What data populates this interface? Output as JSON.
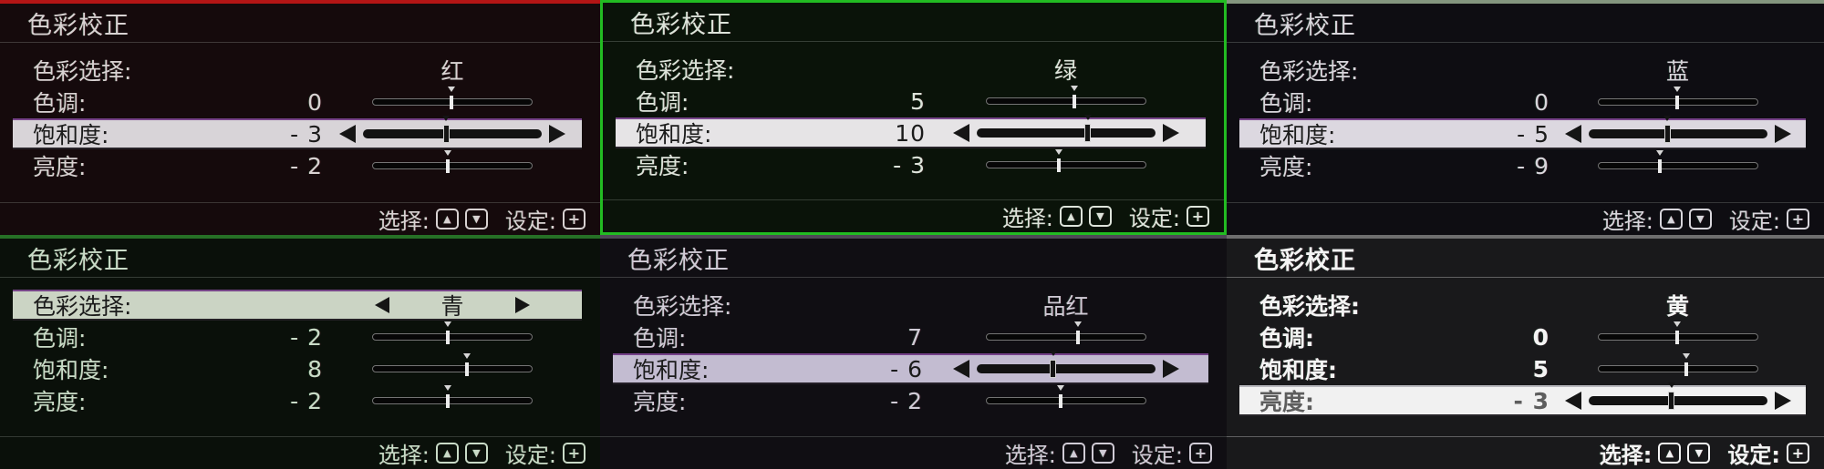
{
  "labels": {
    "title": "色彩校正",
    "color_select": "色彩选择:",
    "hue": "色调:",
    "saturation": "饱和度:",
    "brightness": "亮度:",
    "hint_select": "选择:",
    "hint_set": "设定:",
    "key_up": "▲",
    "key_down": "▼",
    "key_set": "+"
  },
  "panels": [
    {
      "color_name": "红",
      "hue": {
        "text": "0",
        "num": 0
      },
      "saturation": {
        "text": "- 3",
        "num": -3
      },
      "brightness": {
        "text": "- 2",
        "num": -2
      },
      "highlighted_row": "saturation",
      "style": {
        "bg": "#150a0c",
        "border": "#b31515",
        "text": "#d8d2d2",
        "highlight": "#d8d4d8"
      }
    },
    {
      "color_name": "绿",
      "hue": {
        "text": "5",
        "num": 5
      },
      "saturation": {
        "text": "10",
        "num": 10
      },
      "brightness": {
        "text": "- 3",
        "num": -3
      },
      "highlighted_row": "saturation",
      "style": {
        "bg": "#0a1309",
        "border": "#22bb22",
        "text": "#dde3da",
        "highlight": "#e6e4e6"
      }
    },
    {
      "color_name": "蓝",
      "hue": {
        "text": "0",
        "num": 0
      },
      "saturation": {
        "text": "- 5",
        "num": -5
      },
      "brightness": {
        "text": "- 9",
        "num": -9
      },
      "highlighted_row": "saturation",
      "style": {
        "bg": "#0e0d12",
        "border": "#84967f",
        "text": "#d8d6dc",
        "highlight": "#dcd8e0"
      }
    },
    {
      "color_name": "青",
      "hue": {
        "text": "- 2",
        "num": -2
      },
      "saturation": {
        "text": "8",
        "num": 8
      },
      "brightness": {
        "text": "- 2",
        "num": -2
      },
      "highlighted_row": "color_select",
      "style": {
        "bg": "#0a100a",
        "border": "#267026",
        "text": "#c9dbc7",
        "highlight": "#cbd4c4"
      }
    },
    {
      "color_name": "品红",
      "hue": {
        "text": "7",
        "num": 7
      },
      "saturation": {
        "text": "- 6",
        "num": -6
      },
      "brightness": {
        "text": "- 2",
        "num": -2
      },
      "highlighted_row": "saturation",
      "style": {
        "bg": "#100e13",
        "border": "#4e4956",
        "text": "#d0cbd6",
        "highlight": "#c3bcd1"
      }
    },
    {
      "color_name": "黄",
      "hue": {
        "text": "0",
        "num": 0
      },
      "saturation": {
        "text": "5",
        "num": 5
      },
      "brightness": {
        "text": "- 3",
        "num": -3
      },
      "highlighted_row": "brightness",
      "style": {
        "bg": "#19191b",
        "border": "#6e6e6e",
        "text": "#f4f4f4",
        "highlight": "#f1f1f1"
      }
    }
  ]
}
